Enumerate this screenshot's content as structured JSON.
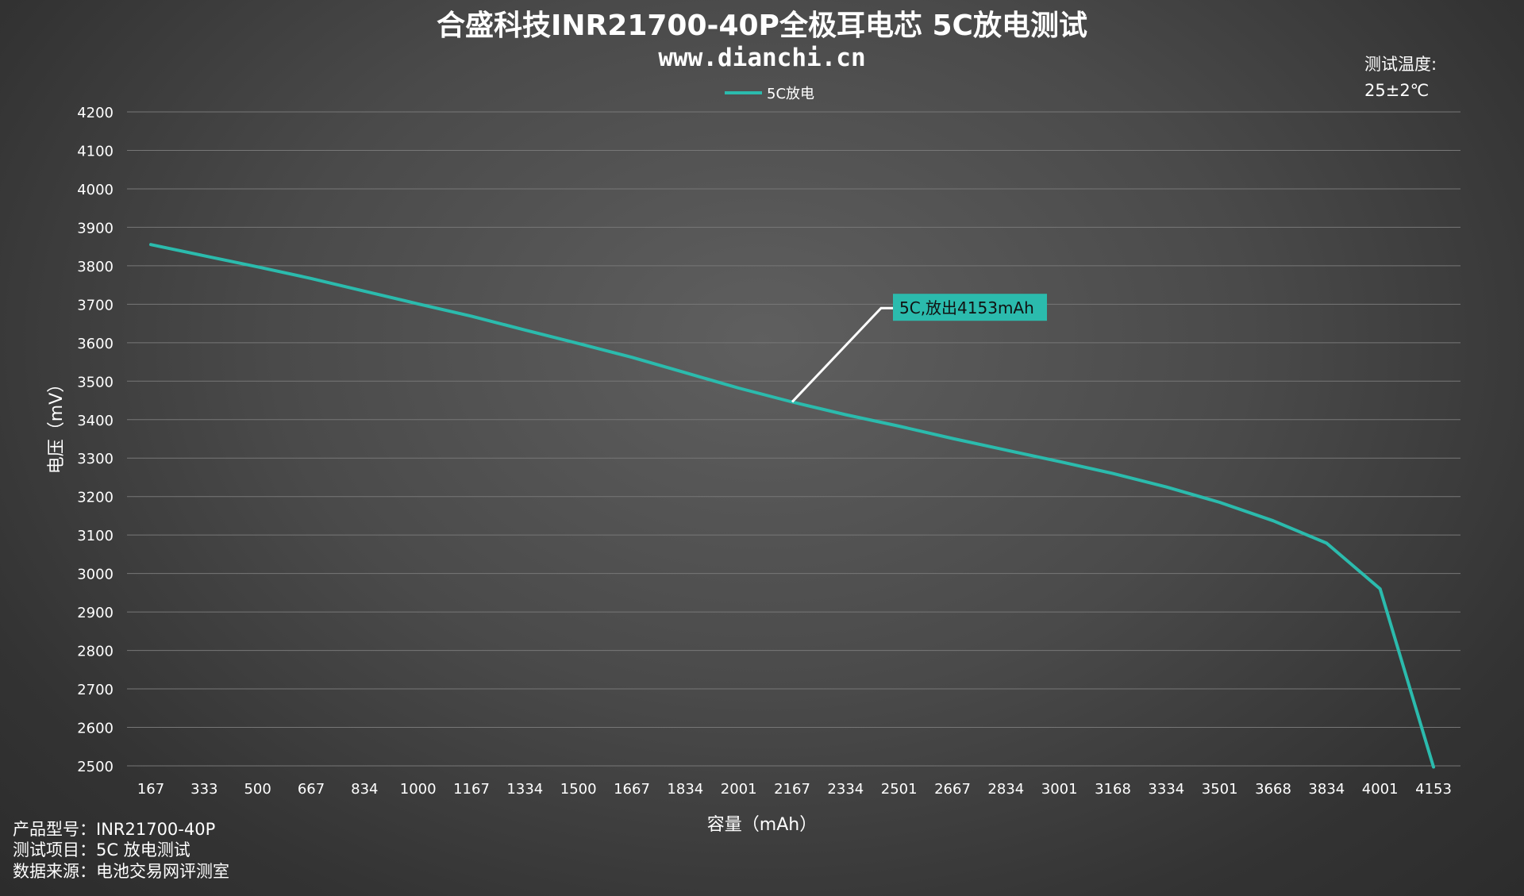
{
  "chart_data": {
    "type": "line",
    "title": "合盛科技INR21700-40P全极耳电芯 5C放电测试",
    "subtitle": "www.dianchi.cn",
    "xlabel": "容量（mAh）",
    "ylabel": "电压（mV）",
    "x_tick_labels": [
      "167",
      "333",
      "500",
      "667",
      "834",
      "1000",
      "1167",
      "1334",
      "1500",
      "1667",
      "1834",
      "2001",
      "2167",
      "2334",
      "2501",
      "2667",
      "2834",
      "3001",
      "3168",
      "3334",
      "3501",
      "3668",
      "3834",
      "4001",
      "4153"
    ],
    "y_ticks": [
      2500,
      2600,
      2700,
      2800,
      2900,
      3000,
      3100,
      3200,
      3300,
      3400,
      3500,
      3600,
      3700,
      3800,
      3900,
      4000,
      4100,
      4200
    ],
    "ylim": [
      2500,
      4200
    ],
    "grid": true,
    "legend_position": "top-center",
    "series": [
      {
        "name": "5C放电",
        "color": "#2bbbad",
        "values": [
          3855,
          3826,
          3797,
          3767,
          3734,
          3701,
          3669,
          3633,
          3598,
          3562,
          3522,
          3482,
          3446,
          3413,
          3383,
          3351,
          3321,
          3291,
          3260,
          3225,
          3185,
          3137,
          3079,
          2960,
          2497
        ]
      }
    ],
    "annotation": {
      "text": "5C,放出4153mAh",
      "point_index": 12,
      "background": "#2bbbad"
    },
    "notes": {
      "temperature_label": "测试温度:",
      "temperature_value": "25±2℃",
      "product": "产品型号：INR21700-40P",
      "test_item": "测试项目：5C 放电测试",
      "source": "数据来源：电池交易网评测室"
    }
  }
}
